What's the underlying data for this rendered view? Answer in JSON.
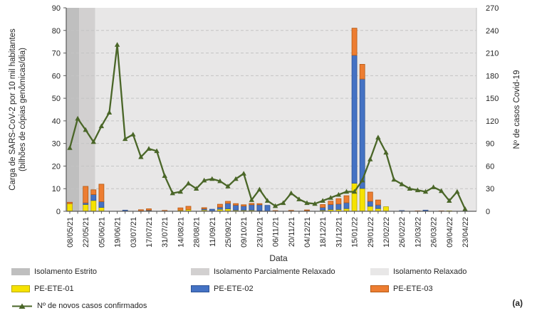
{
  "panel_label": "(a)",
  "chart_data": {
    "type": "combo",
    "subtypes": [
      "stacked-bar",
      "line"
    ],
    "grid": "horizontal-dashed",
    "legend_position": "bottom",
    "x_title": "Data",
    "x_label_every": 2,
    "x": [
      "08/05/21",
      "15/05/21",
      "22/05/21",
      "29/05/21",
      "05/06/21",
      "12/06/21",
      "19/06/21",
      "26/06/21",
      "03/07/21",
      "10/07/21",
      "17/07/21",
      "24/07/21",
      "31/07/21",
      "07/08/21",
      "14/08/21",
      "21/08/21",
      "28/08/21",
      "04/09/21",
      "11/09/21",
      "18/09/21",
      "25/09/21",
      "02/10/21",
      "09/10/21",
      "16/10/21",
      "23/10/21",
      "30/10/21",
      "06/11/21",
      "13/11/21",
      "20/11/21",
      "27/11/21",
      "04/12/21",
      "11/12/21",
      "18/12/21",
      "25/12/21",
      "31/12/21",
      "08/01/22",
      "15/01/22",
      "22/01/22",
      "29/01/22",
      "05/02/22",
      "12/02/22",
      "19/02/22",
      "26/02/22",
      "05/03/22",
      "12/03/22",
      "19/03/22",
      "26/03/22",
      "02/04/22",
      "09/04/22",
      "16/04/22",
      "23/04/22"
    ],
    "axis_left": {
      "title_line1": "Carga de SARS-CoV-2 por 10 mil habitantes",
      "title_line2": "(bilhões de cópias genômicas/dia)",
      "min": 0,
      "max": 90,
      "step": 10
    },
    "axis_right": {
      "title": "Nº de casos Covid-19",
      "min": 0,
      "max": 270,
      "step": 30
    },
    "zones": [
      {
        "name": "Isolamento Estrito",
        "color": "#bfbfbf",
        "start": -0.5,
        "end": 1.2
      },
      {
        "name": "Isolamento Parcialmente Relaxado",
        "color": "#d2d0d0",
        "start": 1.2,
        "end": 3.2
      },
      {
        "name": "Isolamento Relaxado",
        "color": "#e8e7e7",
        "start": 3.2,
        "end": 51.5
      }
    ],
    "series": [
      {
        "name": "PE-ETE-01",
        "type": "bar",
        "axis": "left",
        "color": "#f6e200",
        "border": "#b7a800",
        "values": [
          3.4,
          0,
          3.0,
          4.8,
          1.7,
          0,
          0,
          0,
          0,
          0.2,
          0.3,
          0,
          0,
          0,
          0.5,
          0.8,
          0,
          0.6,
          0,
          0.9,
          1.1,
          0.5,
          0.5,
          0.5,
          0.3,
          0,
          0,
          0,
          0.2,
          0,
          0.3,
          0,
          0.5,
          0.8,
          0.8,
          1.2,
          12.4,
          10.1,
          2.2,
          1.2,
          2.0,
          0,
          0,
          0,
          0,
          0,
          0,
          0,
          0.2,
          0,
          0
        ]
      },
      {
        "name": "PE-ETE-02",
        "type": "bar",
        "axis": "left",
        "color": "#4472c4",
        "border": "#2e5395",
        "values": [
          0,
          0,
          0.7,
          2.6,
          2.6,
          0,
          0,
          0.5,
          0,
          0,
          0.2,
          0,
          0,
          0,
          0,
          0,
          0,
          0.5,
          0.9,
          0.9,
          2.4,
          2.2,
          1.8,
          2.4,
          2.6,
          2.6,
          0,
          0,
          0,
          0,
          0,
          0,
          1.2,
          2.2,
          2.4,
          2.6,
          56.6,
          48.4,
          2.2,
          1.6,
          0,
          0,
          0.3,
          0,
          0,
          0.5,
          0,
          0,
          0,
          0,
          0
        ]
      },
      {
        "name": "PE-ETE-03",
        "type": "bar",
        "axis": "left",
        "color": "#ed7d31",
        "border": "#b55a14",
        "values": [
          0.6,
          0,
          7.3,
          2.1,
          7.7,
          0,
          0,
          0,
          0,
          0.5,
          0.6,
          0,
          0.4,
          0,
          1.0,
          1.4,
          0,
          0.5,
          0,
          1.3,
          0.9,
          0.7,
          0.6,
          0.6,
          0.5,
          0,
          0.3,
          0,
          0.2,
          0,
          0.3,
          0,
          1.3,
          1.5,
          2.4,
          3.1,
          12.0,
          6.5,
          4.1,
          2.2,
          0,
          0,
          0,
          0,
          0.2,
          0,
          0,
          0.2,
          0,
          0,
          0
        ]
      },
      {
        "name": "Nº de novos casos confirmados",
        "type": "line",
        "axis": "right",
        "color": "#4a6628",
        "values": [
          84,
          123,
          108,
          92,
          113,
          131,
          221,
          96,
          102,
          72,
          83,
          80,
          47,
          24,
          26,
          37,
          30,
          41,
          43,
          40,
          33,
          43,
          50,
          15,
          29,
          14,
          7,
          11,
          24,
          16,
          11,
          10,
          14,
          18,
          22,
          26,
          26,
          41,
          69,
          98,
          78,
          42,
          36,
          30,
          28,
          26,
          32,
          27,
          14,
          26,
          3
        ]
      }
    ]
  }
}
